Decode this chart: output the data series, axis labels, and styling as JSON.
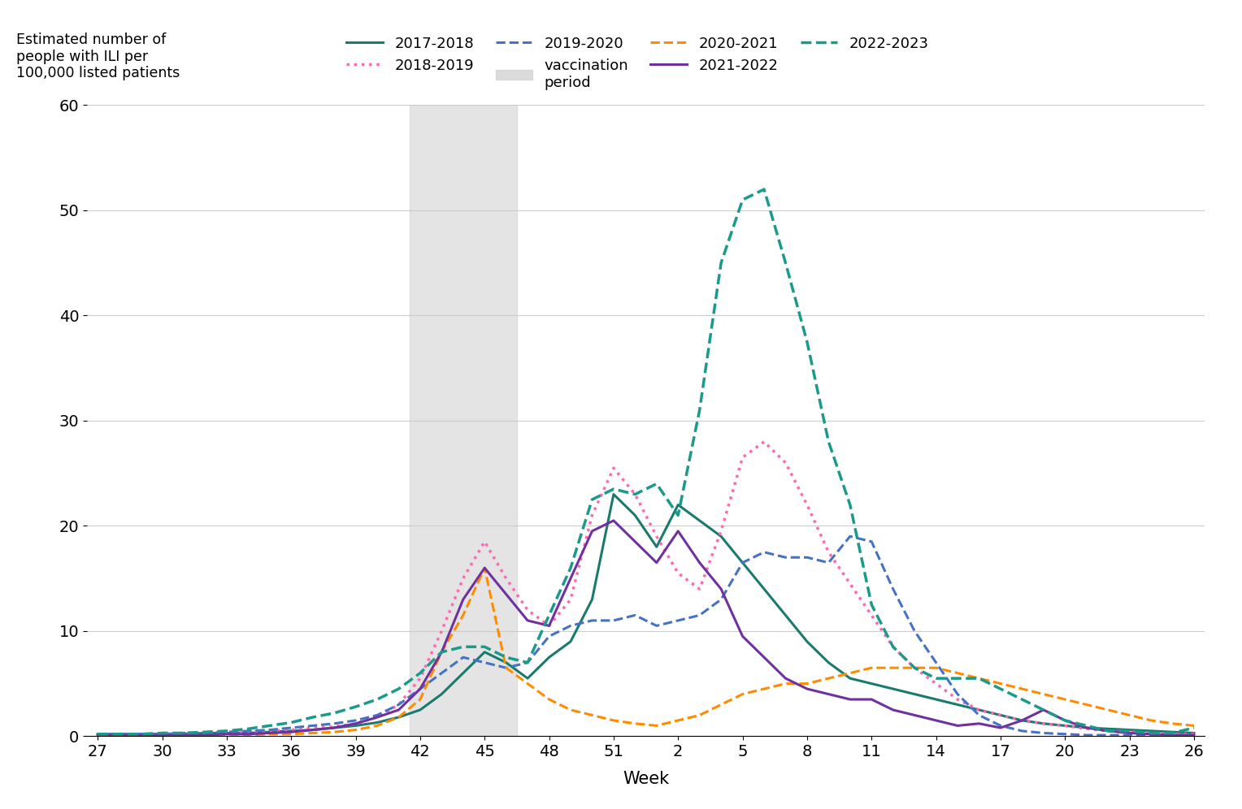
{
  "xlabel": "Week",
  "ylim": [
    0,
    60
  ],
  "yticks": [
    0,
    10,
    20,
    30,
    40,
    50,
    60
  ],
  "xtick_weeks": [
    27,
    30,
    33,
    36,
    39,
    42,
    45,
    48,
    51,
    2,
    5,
    8,
    11,
    14,
    17,
    20,
    23,
    26
  ],
  "xtick_labels": [
    "27",
    "30",
    "33",
    "36",
    "39",
    "42",
    "45",
    "48",
    "51",
    "2",
    "5",
    "8",
    "11",
    "14",
    "17",
    "20",
    "23",
    "26"
  ],
  "vaccination_weeks": [
    41.5,
    46.5
  ],
  "background_color": "#ffffff",
  "series": {
    "2017-2018": {
      "color": "#1a7a6e",
      "linestyle": "solid",
      "linewidth": 2.2,
      "data_x": [
        27,
        28,
        29,
        30,
        31,
        32,
        33,
        34,
        35,
        36,
        37,
        38,
        39,
        40,
        41,
        42,
        43,
        44,
        45,
        46,
        47,
        48,
        49,
        50,
        51,
        52,
        1,
        2,
        3,
        4,
        5,
        6,
        7,
        8,
        9,
        10,
        11,
        12,
        13,
        14,
        15,
        16,
        17,
        18,
        19,
        20,
        21,
        22,
        23,
        24,
        25,
        26
      ],
      "data_y": [
        0.2,
        0.2,
        0.2,
        0.2,
        0.2,
        0.3,
        0.3,
        0.3,
        0.4,
        0.5,
        0.6,
        0.8,
        1.0,
        1.3,
        1.8,
        2.5,
        4.0,
        6.0,
        8.0,
        7.0,
        5.5,
        7.5,
        9.0,
        13.0,
        23.0,
        21.0,
        18.0,
        22.0,
        20.5,
        19.0,
        16.5,
        14.0,
        11.5,
        9.0,
        7.0,
        5.5,
        5.0,
        4.5,
        4.0,
        3.5,
        3.0,
        2.5,
        2.0,
        1.5,
        1.2,
        1.0,
        0.8,
        0.7,
        0.6,
        0.5,
        0.4,
        0.3
      ]
    },
    "2018-2019": {
      "color": "#ff69b4",
      "linestyle": "dotted",
      "linewidth": 2.5,
      "data_x": [
        27,
        28,
        29,
        30,
        31,
        32,
        33,
        34,
        35,
        36,
        37,
        38,
        39,
        40,
        41,
        42,
        43,
        44,
        45,
        46,
        47,
        48,
        49,
        50,
        51,
        52,
        1,
        2,
        3,
        4,
        5,
        6,
        7,
        8,
        9,
        10,
        11,
        12,
        13,
        14,
        15,
        16,
        17,
        18,
        19,
        20,
        21,
        22,
        23,
        24,
        25,
        26
      ],
      "data_y": [
        0.2,
        0.2,
        0.2,
        0.2,
        0.3,
        0.3,
        0.3,
        0.4,
        0.5,
        0.6,
        0.8,
        0.9,
        1.2,
        1.8,
        3.0,
        5.5,
        10.0,
        15.0,
        18.5,
        15.0,
        12.0,
        10.5,
        13.0,
        21.0,
        25.5,
        23.0,
        19.0,
        15.5,
        14.0,
        19.5,
        26.5,
        28.0,
        26.0,
        22.0,
        17.5,
        14.5,
        11.5,
        8.5,
        6.5,
        5.0,
        3.5,
        2.5,
        2.0,
        1.5,
        1.2,
        1.0,
        0.7,
        0.5,
        0.4,
        0.3,
        0.2,
        0.2
      ]
    },
    "2019-2020": {
      "color": "#4472c4",
      "linestyle": "dashed",
      "linewidth": 2.2,
      "data_x": [
        27,
        28,
        29,
        30,
        31,
        32,
        33,
        34,
        35,
        36,
        37,
        38,
        39,
        40,
        41,
        42,
        43,
        44,
        45,
        46,
        47,
        48,
        49,
        50,
        51,
        52,
        1,
        2,
        3,
        4,
        5,
        6,
        7,
        8,
        9,
        10,
        11,
        12,
        13,
        14,
        15,
        16,
        17,
        18,
        19,
        20,
        21,
        22,
        23,
        24,
        25,
        26
      ],
      "data_y": [
        0.2,
        0.2,
        0.2,
        0.2,
        0.3,
        0.3,
        0.4,
        0.5,
        0.6,
        0.8,
        1.0,
        1.2,
        1.5,
        2.0,
        3.0,
        4.5,
        6.0,
        7.5,
        7.0,
        6.5,
        7.0,
        9.5,
        10.5,
        11.0,
        11.0,
        11.5,
        10.5,
        11.0,
        11.5,
        13.0,
        16.5,
        17.5,
        17.0,
        17.0,
        16.5,
        19.0,
        18.5,
        14.0,
        10.0,
        7.0,
        4.0,
        2.0,
        1.0,
        0.5,
        0.3,
        0.2,
        0.1,
        0.1,
        0.1,
        0.1,
        0.1,
        0.1
      ]
    },
    "2020-2021": {
      "color": "#ff8c00",
      "linestyle": "dashed",
      "linewidth": 2.2,
      "data_x": [
        27,
        28,
        29,
        30,
        31,
        32,
        33,
        34,
        35,
        36,
        37,
        38,
        39,
        40,
        41,
        42,
        43,
        44,
        45,
        46,
        47,
        48,
        49,
        50,
        51,
        52,
        1,
        2,
        3,
        4,
        5,
        6,
        7,
        8,
        9,
        10,
        11,
        12,
        13,
        14,
        15,
        16,
        17,
        18,
        19,
        20,
        21,
        22,
        23,
        24,
        25,
        26
      ],
      "data_y": [
        0.1,
        0.1,
        0.1,
        0.1,
        0.1,
        0.1,
        0.1,
        0.1,
        0.2,
        0.2,
        0.3,
        0.4,
        0.6,
        1.0,
        1.8,
        3.5,
        8.0,
        11.5,
        16.0,
        6.5,
        5.0,
        3.5,
        2.5,
        2.0,
        1.5,
        1.2,
        1.0,
        1.5,
        2.0,
        3.0,
        4.0,
        4.5,
        5.0,
        5.0,
        5.5,
        6.0,
        6.5,
        6.5,
        6.5,
        6.5,
        6.0,
        5.5,
        5.0,
        4.5,
        4.0,
        3.5,
        3.0,
        2.5,
        2.0,
        1.5,
        1.2,
        1.0
      ]
    },
    "2021-2022": {
      "color": "#7030a0",
      "linestyle": "solid",
      "linewidth": 2.2,
      "data_x": [
        27,
        28,
        29,
        30,
        31,
        32,
        33,
        34,
        35,
        36,
        37,
        38,
        39,
        40,
        41,
        42,
        43,
        44,
        45,
        46,
        47,
        48,
        49,
        50,
        51,
        52,
        1,
        2,
        3,
        4,
        5,
        6,
        7,
        8,
        9,
        10,
        11,
        12,
        13,
        14,
        15,
        16,
        17,
        18,
        19,
        20,
        21,
        22,
        23,
        24,
        25,
        26
      ],
      "data_y": [
        0.1,
        0.1,
        0.1,
        0.1,
        0.1,
        0.1,
        0.2,
        0.2,
        0.3,
        0.4,
        0.6,
        0.8,
        1.2,
        1.8,
        2.5,
        4.5,
        8.0,
        13.0,
        16.0,
        13.5,
        11.0,
        10.5,
        15.0,
        19.5,
        20.5,
        18.5,
        16.5,
        19.5,
        16.5,
        14.0,
        9.5,
        7.5,
        5.5,
        4.5,
        4.0,
        3.5,
        3.5,
        2.5,
        2.0,
        1.5,
        1.0,
        1.2,
        0.8,
        1.5,
        2.5,
        1.5,
        0.8,
        0.5,
        0.3,
        0.2,
        0.1,
        0.1
      ]
    },
    "2022-2023": {
      "color": "#1a9a8a",
      "linestyle": "dashed",
      "linewidth": 2.5,
      "data_x": [
        27,
        28,
        29,
        30,
        31,
        32,
        33,
        34,
        35,
        36,
        37,
        38,
        39,
        40,
        41,
        42,
        43,
        44,
        45,
        46,
        47,
        48,
        49,
        50,
        51,
        52,
        1,
        2,
        3,
        4,
        5,
        6,
        7,
        8,
        9,
        10,
        11,
        12,
        13,
        14,
        15,
        16,
        17,
        18,
        19,
        20,
        21,
        22,
        23,
        24,
        25,
        26
      ],
      "data_y": [
        0.2,
        0.2,
        0.2,
        0.3,
        0.3,
        0.4,
        0.5,
        0.7,
        1.0,
        1.3,
        1.8,
        2.2,
        2.8,
        3.5,
        4.5,
        6.0,
        8.0,
        8.5,
        8.5,
        7.5,
        7.0,
        11.5,
        16.0,
        22.5,
        23.5,
        23.0,
        24.0,
        21.0,
        31.0,
        45.0,
        51.0,
        52.0,
        45.0,
        37.5,
        28.0,
        22.0,
        12.5,
        8.5,
        6.5,
        5.5,
        5.5,
        5.5,
        4.5,
        3.5,
        2.5,
        1.5,
        1.0,
        0.5,
        0.5,
        0.3,
        0.3,
        0.8
      ]
    }
  },
  "legend_row1": [
    "2017-2018",
    "2018-2019",
    "2019-2020",
    "vaccination period"
  ],
  "legend_row2": [
    "2020-2021",
    "2021-2022",
    "2022-2023"
  ]
}
